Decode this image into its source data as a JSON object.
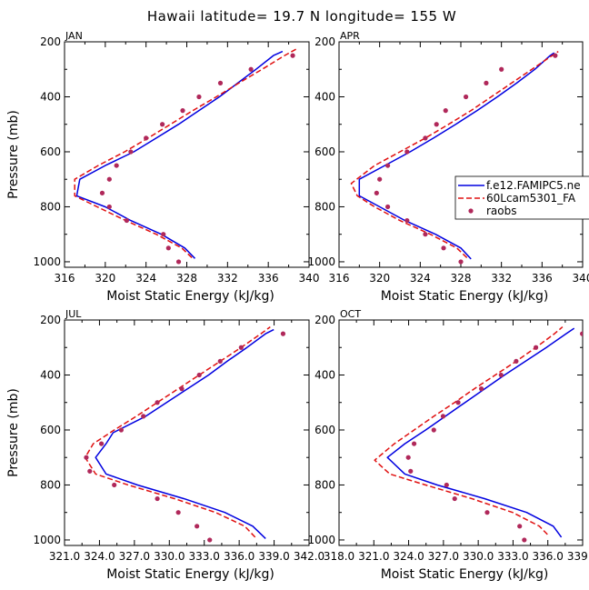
{
  "title": "Hawaii  latitude= 19.7 N longitude= 155 W",
  "colors": {
    "s1": "#0000e0",
    "s2": "#e01010",
    "s3": "#b0285a"
  },
  "legend": {
    "items": [
      "f.e12.FAMIPC5.ne",
      "60Lcam5301_FA",
      "raobs"
    ]
  },
  "chart_data": [
    {
      "type": "line",
      "label": "JAN",
      "xlabel": "Moist Static Energy (kJ/kg)",
      "ylabel": "Pressure (mb)",
      "xlim": [
        316,
        340
      ],
      "ylim": [
        1020,
        200
      ],
      "xticks": [
        316,
        320,
        324,
        328,
        332,
        336,
        340
      ],
      "xtick_labels": [
        "316",
        "320",
        "324",
        "328",
        "332",
        "336",
        "340"
      ],
      "yticks": [
        200,
        400,
        600,
        800,
        1000
      ],
      "series": [
        {
          "name": "f.e12.FAMIPC5.ne",
          "style": "solid",
          "pressure": [
            988,
            950,
            900,
            850,
            800,
            760,
            700,
            650,
            600,
            550,
            500,
            450,
            400,
            350,
            300,
            250,
            235
          ],
          "values": [
            328.8,
            327.8,
            325.5,
            322.5,
            320.0,
            317.2,
            317.5,
            320.0,
            322.8,
            325.0,
            327.2,
            329.2,
            331.2,
            333.0,
            334.8,
            336.5,
            337.4
          ]
        },
        {
          "name": "60Lcam5301_FA",
          "style": "dashed",
          "pressure": [
            985,
            950,
            900,
            850,
            800,
            760,
            700,
            650,
            600,
            550,
            500,
            450,
            400,
            350,
            300,
            250,
            225
          ],
          "values": [
            328.5,
            327.5,
            325.0,
            322.0,
            319.2,
            317.0,
            317.0,
            319.3,
            321.9,
            324.2,
            326.4,
            328.6,
            330.9,
            333.1,
            335.4,
            337.6,
            338.8
          ]
        },
        {
          "name": "raobs",
          "style": "points",
          "pressure": [
            1000,
            950,
            900,
            850,
            800,
            750,
            700,
            650,
            600,
            550,
            500,
            450,
            400,
            350,
            300,
            250
          ],
          "values": [
            327.2,
            326.2,
            325.7,
            322.1,
            320.4,
            319.7,
            320.4,
            321.1,
            322.5,
            324.0,
            325.6,
            327.6,
            329.2,
            331.3,
            334.3,
            338.4
          ]
        }
      ]
    },
    {
      "type": "line",
      "label": "APR",
      "xlabel": "Moist Static Energy (kJ/kg)",
      "ylabel": "",
      "xlim": [
        316,
        340
      ],
      "ylim": [
        1020,
        200
      ],
      "xticks": [
        316,
        320,
        324,
        328,
        332,
        336,
        340
      ],
      "xtick_labels": [
        "316",
        "320",
        "324",
        "328",
        "332",
        "336",
        "340"
      ],
      "yticks": [
        200,
        400,
        600,
        800,
        1000
      ],
      "series": [
        {
          "name": "f.e12.FAMIPC5.ne",
          "style": "solid",
          "pressure": [
            990,
            950,
            900,
            850,
            800,
            760,
            700,
            650,
            600,
            550,
            500,
            450,
            400,
            350,
            300,
            250,
            240
          ],
          "values": [
            329.0,
            328.0,
            325.5,
            322.5,
            320.0,
            318.0,
            318.0,
            320.5,
            323.0,
            325.3,
            327.5,
            329.6,
            331.6,
            333.5,
            335.3,
            336.8,
            337.2
          ]
        },
        {
          "name": "60Lcam5301_FA",
          "style": "dashed",
          "pressure": [
            985,
            950,
            900,
            850,
            800,
            760,
            715,
            650,
            600,
            550,
            500,
            450,
            400,
            350,
            300,
            250,
            235
          ],
          "values": [
            328.6,
            327.6,
            325.0,
            322.0,
            319.5,
            317.8,
            317.2,
            319.5,
            322.0,
            324.5,
            326.8,
            329.0,
            331.0,
            333.0,
            335.0,
            337.0,
            337.6
          ]
        },
        {
          "name": "raobs",
          "style": "points",
          "pressure": [
            1000,
            950,
            900,
            850,
            800,
            750,
            700,
            650,
            600,
            550,
            500,
            450,
            400,
            350,
            300,
            250
          ],
          "values": [
            328.0,
            326.3,
            324.5,
            322.7,
            320.8,
            319.7,
            320.0,
            320.8,
            322.7,
            324.5,
            325.6,
            326.5,
            328.5,
            330.5,
            332.0,
            337.3
          ]
        }
      ]
    },
    {
      "type": "line",
      "label": "JUL",
      "xlabel": "Moist Static Energy (kJ/kg)",
      "ylabel": "Pressure (mb)",
      "xlim": [
        321.03,
        342.03
      ],
      "ylim": [
        1020,
        200
      ],
      "xticks": [
        321.03,
        324.03,
        327.03,
        330.03,
        333.03,
        336.03,
        339.03,
        342.03
      ],
      "xtick_labels": [
        "321.0",
        "324.0",
        "327.0",
        "330.0",
        "333.0",
        "336.0",
        "339.0",
        "342.0"
      ],
      "yticks": [
        200,
        400,
        600,
        800,
        1000
      ],
      "series": [
        {
          "name": "f.e12.FAMIPC5.ne",
          "style": "solid",
          "pressure": [
            995,
            950,
            900,
            850,
            800,
            760,
            700,
            650,
            610,
            550,
            500,
            450,
            400,
            350,
            300,
            250,
            235
          ],
          "values": [
            338.3,
            337.2,
            334.8,
            331.3,
            327.3,
            324.6,
            323.7,
            324.6,
            325.2,
            328.0,
            329.8,
            331.6,
            333.4,
            335.0,
            336.7,
            338.3,
            339.0
          ]
        },
        {
          "name": "60Lcam5301_FA",
          "style": "dashed",
          "pressure": [
            990,
            950,
            900,
            850,
            800,
            760,
            700,
            650,
            600,
            550,
            500,
            450,
            400,
            350,
            300,
            250,
            225
          ],
          "values": [
            337.4,
            336.5,
            334.0,
            330.5,
            326.5,
            323.7,
            322.8,
            323.5,
            325.3,
            327.2,
            329.0,
            330.8,
            332.6,
            334.4,
            336.2,
            337.9,
            338.7
          ]
        },
        {
          "name": "raobs",
          "style": "points",
          "pressure": [
            1000,
            950,
            900,
            850,
            800,
            750,
            700,
            650,
            600,
            550,
            500,
            450,
            400,
            350,
            300,
            250
          ],
          "values": [
            333.5,
            332.4,
            330.8,
            329.0,
            325.3,
            323.2,
            322.9,
            324.2,
            325.9,
            327.8,
            329.0,
            331.1,
            332.6,
            334.4,
            336.2,
            339.8
          ]
        }
      ]
    },
    {
      "type": "line",
      "label": "OCT",
      "xlabel": "Moist Static Energy (kJ/kg)",
      "ylabel": "",
      "xlim": [
        318.03,
        339.03
      ],
      "ylim": [
        1020,
        200
      ],
      "xticks": [
        318.03,
        321.03,
        324.03,
        327.03,
        330.03,
        333.03,
        336.03,
        339.03
      ],
      "xtick_labels": [
        "318.0",
        "321.0",
        "324.0",
        "327.0",
        "330.0",
        "333.0",
        "336.0",
        "339.0"
      ],
      "yticks": [
        200,
        400,
        600,
        800,
        1000
      ],
      "series": [
        {
          "name": "f.e12.FAMIPC5.ne",
          "style": "solid",
          "pressure": [
            990,
            950,
            900,
            850,
            800,
            760,
            700,
            650,
            600,
            550,
            500,
            450,
            400,
            350,
            300,
            250,
            230
          ],
          "values": [
            337.2,
            336.5,
            334.2,
            330.6,
            326.5,
            323.7,
            322.2,
            323.7,
            325.5,
            327.2,
            328.9,
            330.6,
            332.3,
            334.1,
            335.9,
            337.6,
            338.3
          ]
        },
        {
          "name": "60Lcam5301_FA",
          "style": "dashed",
          "pressure": [
            980,
            950,
            900,
            850,
            800,
            760,
            710,
            650,
            600,
            550,
            500,
            450,
            400,
            350,
            300,
            250,
            225
          ],
          "values": [
            336.0,
            335.3,
            333.0,
            329.5,
            325.5,
            322.4,
            321.1,
            322.8,
            324.5,
            326.2,
            328.0,
            329.7,
            331.5,
            333.3,
            335.0,
            336.6,
            337.3
          ]
        },
        {
          "name": "raobs",
          "style": "points",
          "pressure": [
            1000,
            950,
            900,
            850,
            800,
            750,
            700,
            650,
            600,
            550,
            500,
            450,
            400,
            350,
            300,
            250
          ],
          "values": [
            334.0,
            333.6,
            330.8,
            328.0,
            327.3,
            324.2,
            324.0,
            324.5,
            326.2,
            327.0,
            328.3,
            330.3,
            332.0,
            333.3,
            335.0,
            339.0
          ]
        }
      ]
    }
  ]
}
